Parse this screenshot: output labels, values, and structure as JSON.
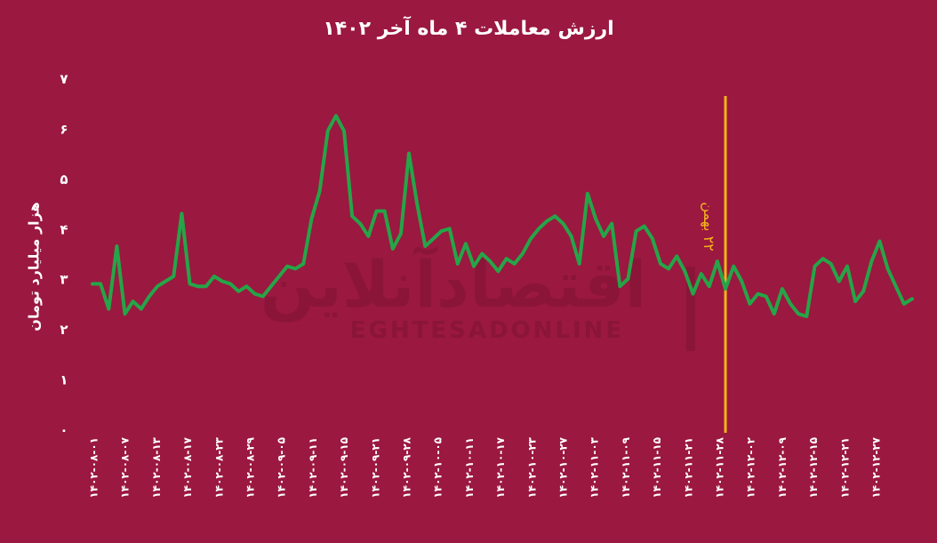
{
  "chart_data": {
    "type": "line",
    "title": "ارزش معاملات ۴ ماه آخر ۱۴۰۲",
    "ylabel": "هزار میلیارد تومان",
    "xlabel": "",
    "ylim": [
      0,
      7
    ],
    "yticks": [
      "۰",
      "۱",
      "۲",
      "۳",
      "۴",
      "۵",
      "۶",
      "۷"
    ],
    "xtick_labels": [
      "۱۴۰۲-۰۸-۰۱",
      "۱۴۰۲-۰۸-۰۷",
      "۱۴۰۲-۰۸-۱۳",
      "۱۴۰۲-۰۸-۱۷",
      "۱۴۰۲-۰۸-۲۳",
      "۱۴۰۲-۰۸-۲۹",
      "۱۴۰۲-۰۹-۰۵",
      "۱۴۰۲-۰۹-۱۱",
      "۱۴۰۲-۰۹-۱۵",
      "۱۴۰۲-۰۹-۲۱",
      "۱۴۰۲-۰۹-۲۸",
      "۱۴۰۲-۱۰-۰۵",
      "۱۴۰۲-۱۰-۱۱",
      "۱۴۰۲-۱۰-۱۷",
      "۱۴۰۲-۱۰-۲۳",
      "۱۴۰۲-۱۰-۲۷",
      "۱۴۰۲-۱۱-۰۳",
      "۱۴۰۲-۱۱-۰۹",
      "۱۴۰۲-۱۱-۱۵",
      "۱۴۰۲-۱۱-۲۱",
      "۱۴۰۲-۱۱-۲۸",
      "۱۴۰۲-۱۲-۰۲",
      "۱۴۰۲-۱۲-۰۹",
      "۱۴۰۲-۱۲-۱۵",
      "۱۴۰۲-۱۲-۲۱",
      "۱۴۰۲-۱۲-۲۷"
    ],
    "series": [
      {
        "values": [
          2.9,
          2.9,
          2.4,
          3.65,
          2.3,
          2.55,
          2.4,
          2.65,
          2.85,
          2.95,
          3.05,
          4.3,
          2.9,
          2.85,
          2.85,
          3.05,
          2.95,
          2.9,
          2.75,
          2.85,
          2.7,
          2.65,
          2.85,
          3.05,
          3.25,
          3.2,
          3.3,
          4.2,
          4.75,
          5.95,
          6.25,
          5.95,
          4.25,
          4.1,
          3.85,
          4.35,
          4.35,
          3.6,
          3.9,
          5.5,
          4.5,
          3.65,
          3.8,
          3.95,
          4.0,
          3.3,
          3.7,
          3.25,
          3.5,
          3.35,
          3.15,
          3.4,
          3.3,
          3.5,
          3.8,
          4.0,
          4.15,
          4.25,
          4.1,
          3.85,
          3.3,
          4.7,
          4.2,
          3.85,
          4.1,
          2.85,
          3.0,
          3.95,
          4.05,
          3.8,
          3.3,
          3.2,
          3.45,
          3.15,
          2.7,
          3.1,
          2.85,
          3.35,
          2.8,
          3.25,
          2.95,
          2.5,
          2.7,
          2.65,
          2.3,
          2.8,
          2.5,
          2.3,
          2.25,
          3.25,
          3.4,
          3.3,
          2.95,
          3.25,
          2.55,
          2.75,
          3.35,
          3.75,
          3.2,
          2.85,
          2.5,
          2.6
        ],
        "color": "#25a548"
      }
    ],
    "annotation": {
      "text": "۲۲ بهمن",
      "x_index": 78,
      "color": "#f2b41b"
    },
    "grid": false,
    "legend": "none"
  },
  "watermark": {
    "logo_text": "اقتصادآنلاین",
    "sub_text": "EGHTESADONLINE"
  }
}
